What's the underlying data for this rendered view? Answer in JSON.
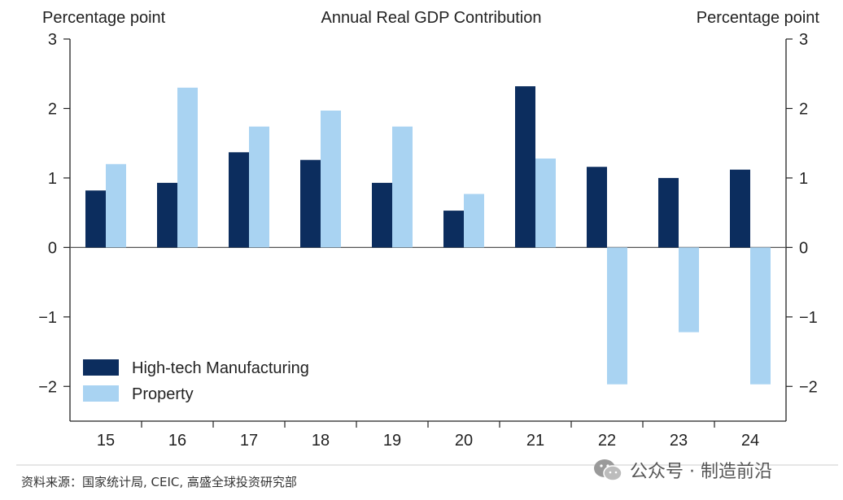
{
  "chart_data": {
    "type": "bar",
    "title": "Annual Real GDP Contribution",
    "left_axis_label": "Percentage point",
    "right_axis_label": "Percentage point",
    "categories": [
      "15",
      "16",
      "17",
      "18",
      "19",
      "20",
      "21",
      "22",
      "23",
      "24"
    ],
    "series": [
      {
        "name": "High-tech Manufacturing",
        "color": "#0c2d5e",
        "values": [
          0.82,
          0.93,
          1.37,
          1.26,
          0.93,
          0.53,
          2.32,
          1.16,
          1.0,
          1.12
        ]
      },
      {
        "name": "Property",
        "color": "#a9d3f2",
        "values": [
          1.2,
          2.3,
          1.74,
          1.97,
          1.74,
          0.77,
          1.28,
          -1.97,
          -1.22,
          -1.97
        ]
      }
    ],
    "ylim": [
      -2.5,
      3
    ],
    "yticks": [
      3,
      2,
      1,
      0,
      -1,
      -2
    ],
    "legend_position": "bottom-left",
    "grid": false
  },
  "footer": {
    "source": "资料来源：国家统计局, CEIC, 高盛全球投资研究部"
  },
  "watermark": {
    "icon": "wechat-icon",
    "text": "公众号 · 制造前沿"
  }
}
